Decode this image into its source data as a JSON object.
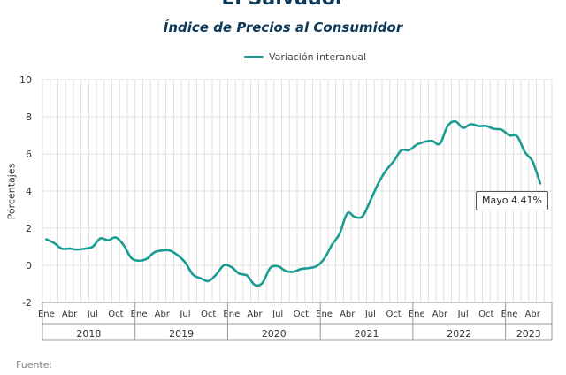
{
  "header": {
    "title": "El Salvador",
    "subtitle": "Índice de Precios al Consumidor"
  },
  "footer": {
    "source_label": "Fuente:"
  },
  "colors": {
    "line": "#1a9b94",
    "title": "#0e3a5a",
    "grid": "#d9d9d9"
  },
  "chart_data": {
    "type": "line",
    "title": "",
    "ylabel": "Porcentajes",
    "xlabel": "",
    "ylim": [
      -2,
      10
    ],
    "yticks": [
      "-2",
      "0",
      "2",
      "4",
      "6",
      "8",
      "10"
    ],
    "grid": true,
    "legend_position": "top-center",
    "month_labels": [
      "Ene",
      "Abr",
      "Jul",
      "Oct"
    ],
    "years": [
      "2018",
      "2019",
      "2020",
      "2021",
      "2022",
      "2023"
    ],
    "series": [
      {
        "name": "Variación interanual",
        "x_start": "2018-01",
        "values": [
          1.4,
          1.2,
          0.9,
          0.9,
          0.85,
          0.9,
          1.0,
          1.45,
          1.35,
          1.5,
          1.1,
          0.4,
          0.25,
          0.35,
          0.7,
          0.8,
          0.8,
          0.55,
          0.15,
          -0.5,
          -0.7,
          -0.85,
          -0.5,
          0.0,
          -0.1,
          -0.45,
          -0.55,
          -1.05,
          -0.95,
          -0.15,
          -0.05,
          -0.3,
          -0.35,
          -0.2,
          -0.15,
          -0.05,
          0.35,
          1.1,
          1.7,
          2.8,
          2.6,
          2.65,
          3.5,
          4.4,
          5.1,
          5.6,
          6.2,
          6.2,
          6.5,
          6.65,
          6.7,
          6.55,
          7.5,
          7.75,
          7.4,
          7.6,
          7.5,
          7.5,
          7.35,
          7.3,
          7.0,
          6.95,
          6.1,
          5.6,
          4.41
        ]
      }
    ],
    "annotation": "Mayo 4.41%"
  }
}
